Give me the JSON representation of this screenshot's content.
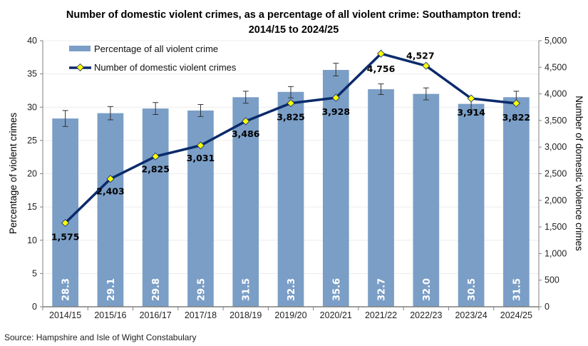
{
  "chart_data": {
    "type": "bar",
    "title_lines": [
      "Number of domestic violent crimes, as a percentage of all violent crime: Southampton trend:",
      "2014/15 to 2024/25"
    ],
    "categories": [
      "2014/15",
      "2015/16",
      "2016/17",
      "2017/18",
      "2018/19",
      "2019/20",
      "2020/21",
      "2021/22",
      "2022/23",
      "2023/24",
      "2024/25"
    ],
    "series": [
      {
        "name": "Percentage of all violent crime",
        "type": "bar",
        "axis": "left",
        "color": "#7a9ec6",
        "values": [
          28.3,
          29.1,
          29.8,
          29.5,
          31.5,
          32.3,
          35.6,
          32.7,
          32.0,
          30.5,
          31.5
        ],
        "value_labels": [
          "28.3",
          "29.1",
          "29.8",
          "29.5",
          "31.5",
          "32.3",
          "35.6",
          "32.7",
          "32.0",
          "30.5",
          "31.5"
        ],
        "error_low": [
          27.1,
          28.1,
          28.9,
          28.6,
          30.6,
          31.4,
          34.7,
          31.9,
          31.1,
          29.6,
          30.5
        ],
        "error_high": [
          29.5,
          30.1,
          30.7,
          30.4,
          32.4,
          33.1,
          36.6,
          33.5,
          32.9,
          31.4,
          32.4
        ]
      },
      {
        "name": "Number of domestic violent crimes",
        "type": "line",
        "axis": "right",
        "color": "#0b2a6b",
        "marker_color": "#ffff00",
        "values": [
          1575,
          2403,
          2825,
          3031,
          3486,
          3825,
          3928,
          4756,
          4527,
          3914,
          3822
        ],
        "value_labels": [
          "1,575",
          "2,403",
          "2,825",
          "3,031",
          "3,486",
          "3,825",
          "3,928",
          "4,756",
          "4,527",
          "3,914",
          "3,822"
        ]
      }
    ],
    "ylabel": "Percentage of violent crimes",
    "ylim": [
      0,
      40
    ],
    "yticks": [
      0,
      5,
      10,
      15,
      20,
      25,
      30,
      35,
      40
    ],
    "ytick_labels": [
      "0",
      "5",
      "10",
      "15",
      "20",
      "25",
      "30",
      "35",
      "40"
    ],
    "y2label": "Number of domestic violence crimes",
    "y2lim": [
      0,
      5000
    ],
    "y2ticks": [
      0,
      500,
      1000,
      1500,
      2000,
      2500,
      3000,
      3500,
      4000,
      4500,
      5000
    ],
    "y2tick_labels": [
      "0",
      "500",
      "1,000",
      "1,500",
      "2,000",
      "2,500",
      "3,000",
      "3,500",
      "4,000",
      "4,500",
      "5,000"
    ],
    "xlabel": "",
    "grid": true,
    "legend_position": "top-left",
    "legend": [
      "Percentage of all violent crime",
      "Number of domestic violent crimes"
    ],
    "source": "Source: Hampshire and Isle of Wight Constabulary"
  }
}
